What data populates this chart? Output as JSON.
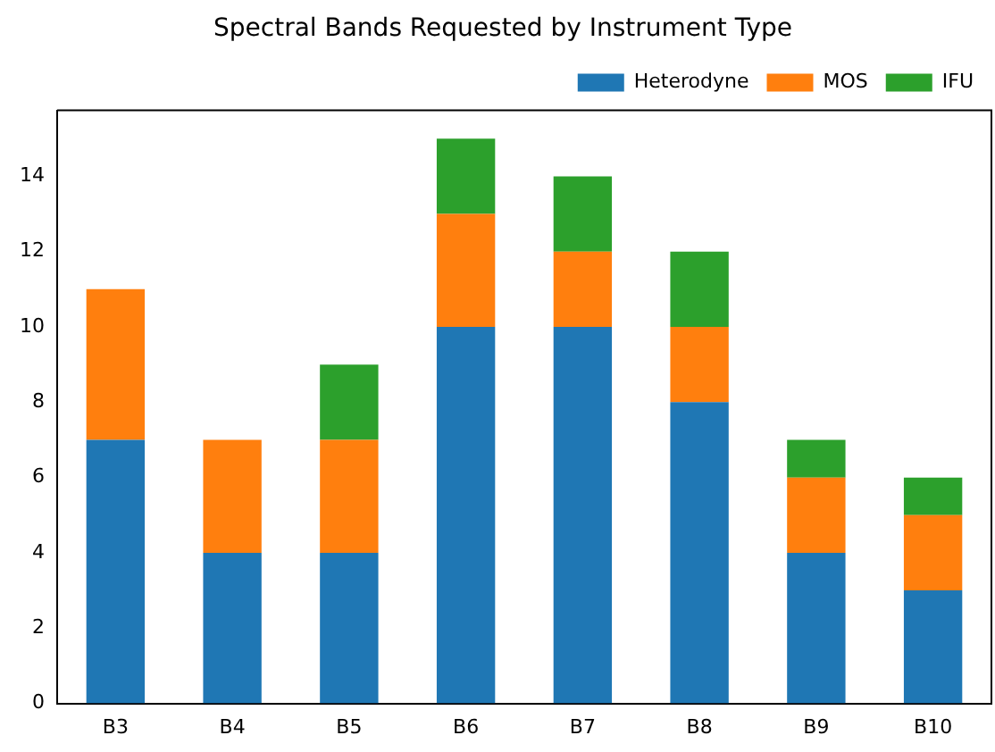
{
  "chart_data": {
    "type": "bar",
    "title": "Spectral Bands Requested by Instrument Type",
    "categories": [
      "B3",
      "B4",
      "B5",
      "B6",
      "B7",
      "B8",
      "B9",
      "B10"
    ],
    "stacked": true,
    "series": [
      {
        "name": "Heterodyne",
        "color": "#1f77b4",
        "values": [
          7,
          4,
          4,
          10,
          10,
          8,
          4,
          3
        ]
      },
      {
        "name": "MOS",
        "color": "#ff7f0e",
        "values": [
          4,
          3,
          3,
          3,
          2,
          2,
          2,
          2
        ]
      },
      {
        "name": "IFU",
        "color": "#2ca02c",
        "values": [
          0,
          0,
          2,
          2,
          2,
          2,
          1,
          1
        ]
      }
    ],
    "ylim": [
      0,
      15.75
    ],
    "yticks": [
      0,
      2,
      4,
      6,
      8,
      10,
      12,
      14
    ],
    "grid": false,
    "legend": "top right"
  }
}
